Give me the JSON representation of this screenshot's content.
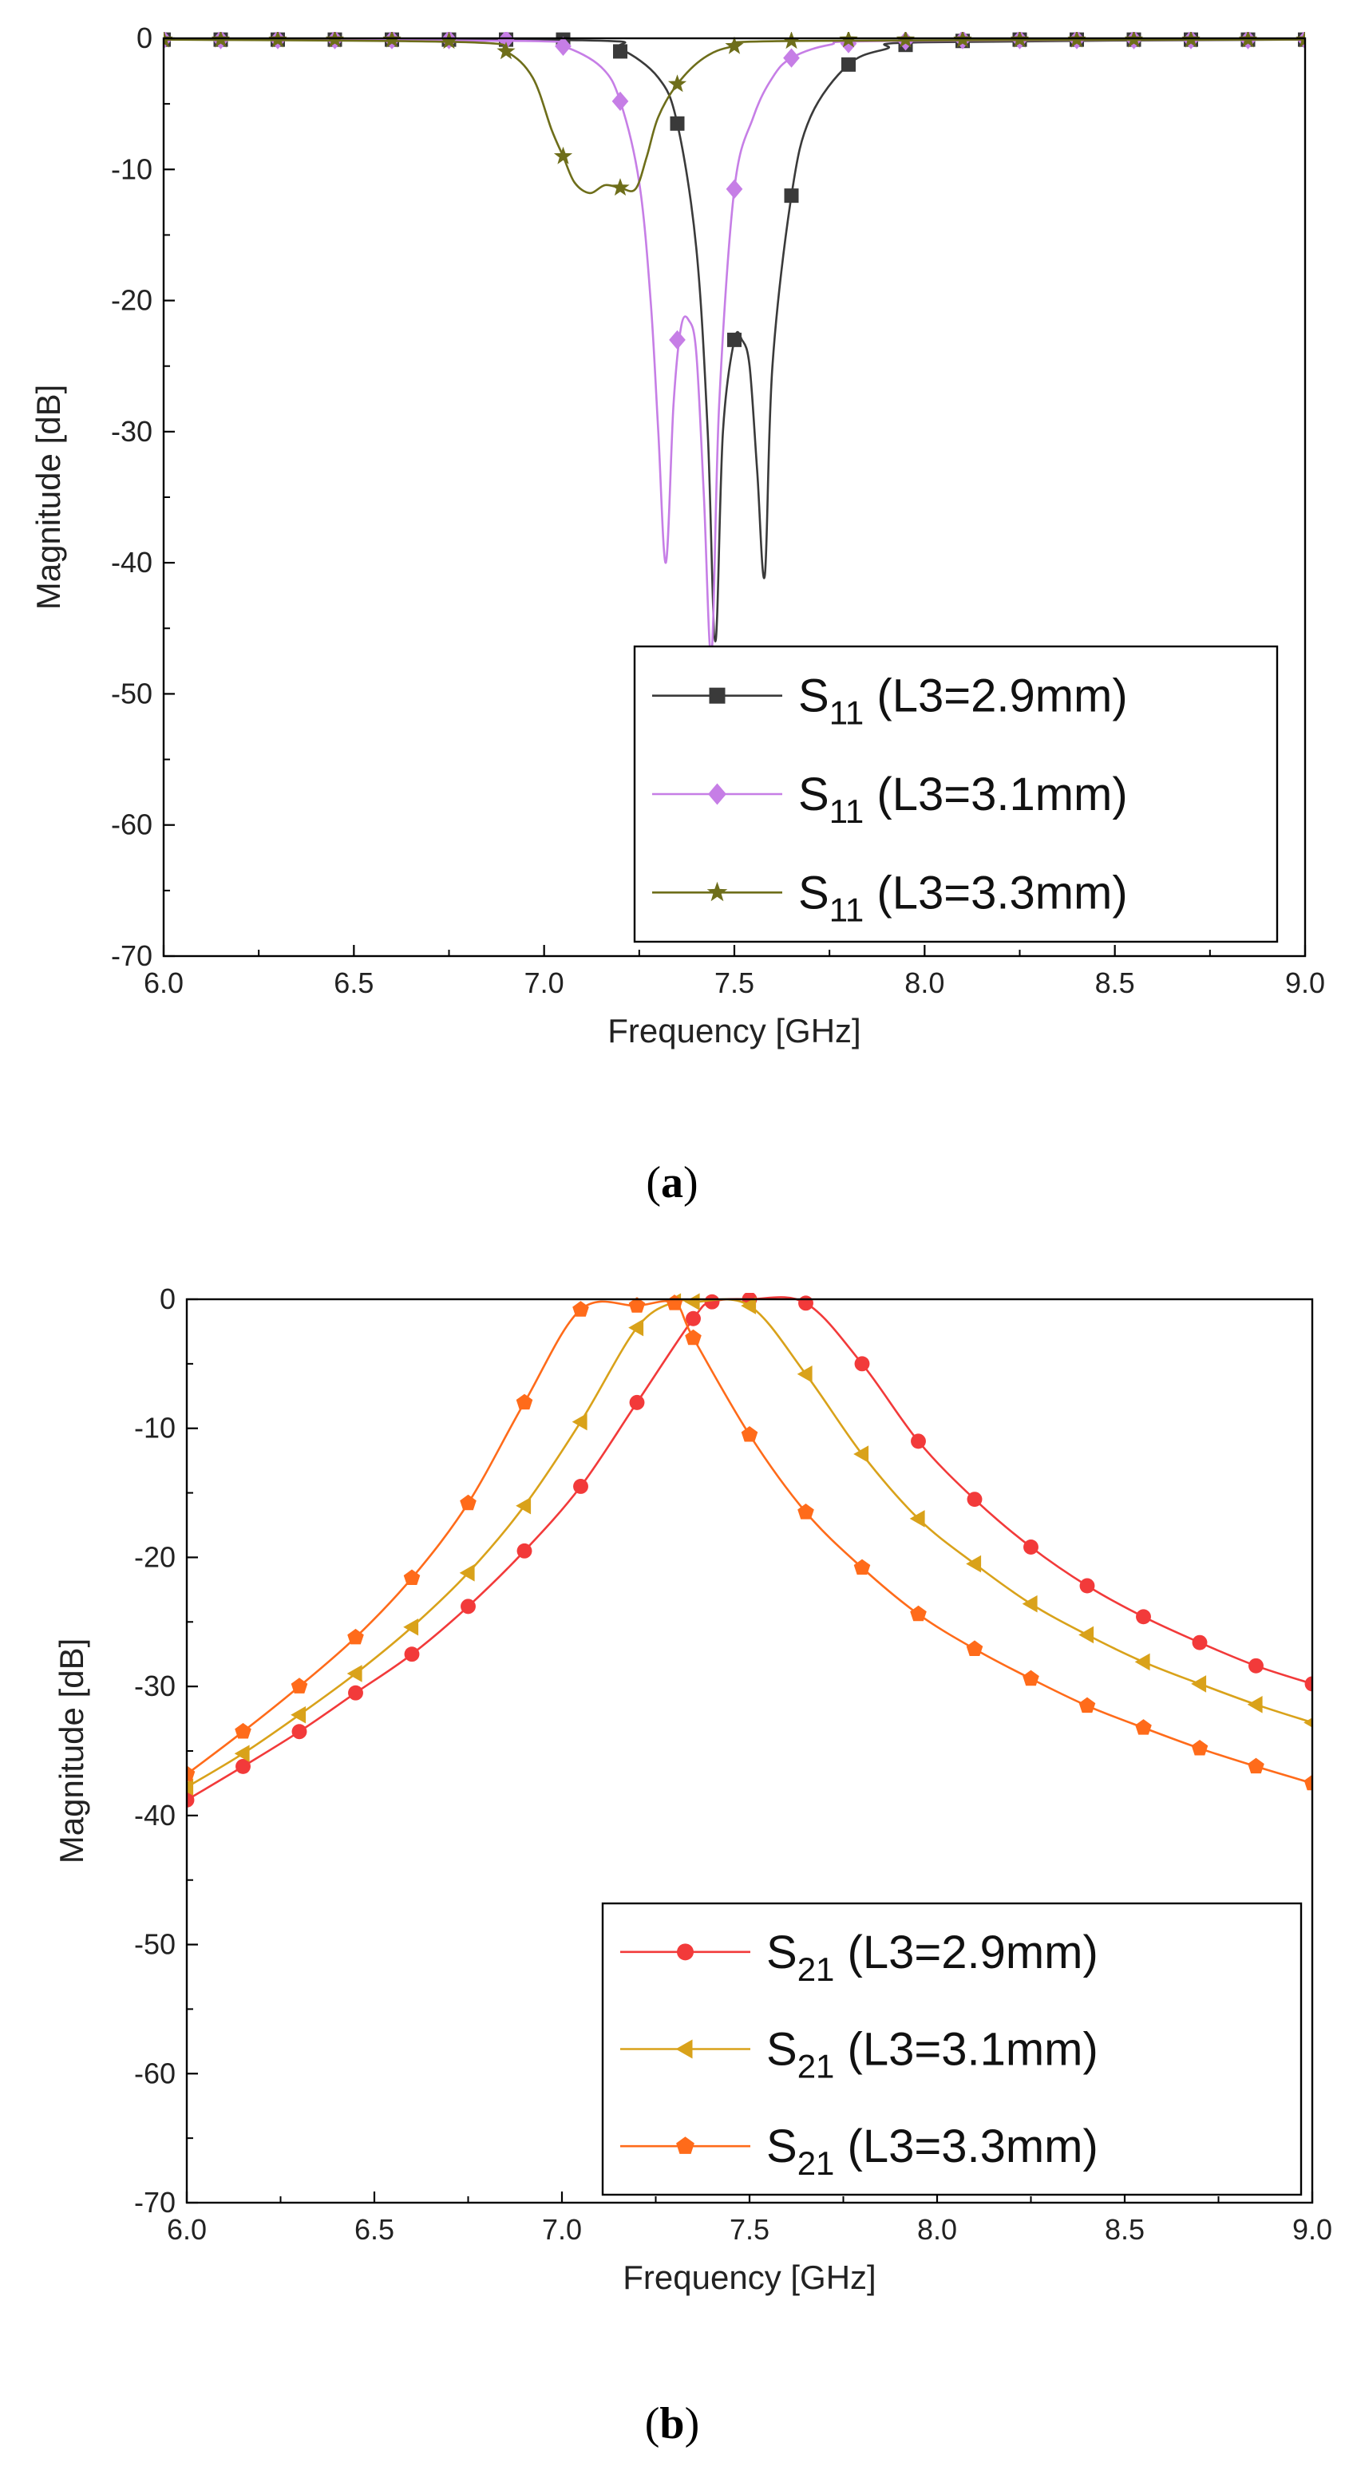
{
  "colors": {
    "axis": "#000000",
    "s11_29": "#3a3a3a",
    "s11_31": "#c67ee6",
    "s11_33": "#6e6e1a",
    "s21_29": "#f23a3a",
    "s21_31": "#d9a21a",
    "s21_33": "#ff6b1a"
  },
  "chart_data": [
    {
      "id": "a",
      "type": "line",
      "caption": "a",
      "xlabel": "Frequency [GHz]",
      "ylabel": "Magnitude [dB]",
      "xlim": [
        6.0,
        9.0
      ],
      "ylim": [
        -70,
        0
      ],
      "xticks": [
        "6.0",
        "6.5",
        "7.0",
        "7.5",
        "8.0",
        "8.5",
        "9.0"
      ],
      "yticks": [
        "0",
        "-10",
        "-20",
        "-30",
        "-40",
        "-50",
        "-60",
        "-70"
      ],
      "legend_position": "bottom-right",
      "series": [
        {
          "name": "S11 (L3=2.9mm)",
          "label_main": "S",
          "label_sub": "11",
          "label_rest": " (L3=2.9mm)",
          "color_key": "s11_29",
          "marker": "square",
          "curve": [
            [
              6.0,
              -0.1
            ],
            [
              7.1,
              -0.15
            ],
            [
              7.2,
              -0.8
            ],
            [
              7.3,
              -3
            ],
            [
              7.35,
              -6.5
            ],
            [
              7.4,
              -16
            ],
            [
              7.43,
              -30
            ],
            [
              7.45,
              -46
            ],
            [
              7.47,
              -30
            ],
            [
              7.5,
              -23
            ],
            [
              7.52,
              -23
            ],
            [
              7.54,
              -25
            ],
            [
              7.56,
              -33
            ],
            [
              7.58,
              -41
            ],
            [
              7.6,
              -25
            ],
            [
              7.65,
              -12
            ],
            [
              7.7,
              -6
            ],
            [
              7.8,
              -2
            ],
            [
              7.9,
              -0.8
            ],
            [
              8.0,
              -0.3
            ],
            [
              9.0,
              -0.1
            ]
          ],
          "markers": [
            [
              6.0,
              -0.1
            ],
            [
              6.15,
              -0.1
            ],
            [
              6.3,
              -0.1
            ],
            [
              6.45,
              -0.1
            ],
            [
              6.6,
              -0.1
            ],
            [
              6.75,
              -0.1
            ],
            [
              6.9,
              -0.1
            ],
            [
              7.05,
              -0.1
            ],
            [
              7.2,
              -1
            ],
            [
              7.35,
              -6.5
            ],
            [
              7.5,
              -23
            ],
            [
              7.65,
              -12
            ],
            [
              7.8,
              -2
            ],
            [
              7.95,
              -0.5
            ],
            [
              8.1,
              -0.2
            ],
            [
              8.25,
              -0.1
            ],
            [
              8.4,
              -0.1
            ],
            [
              8.55,
              -0.1
            ],
            [
              8.7,
              -0.1
            ],
            [
              8.85,
              -0.1
            ],
            [
              9.0,
              -0.1
            ]
          ]
        },
        {
          "name": "S11 (L3=3.1mm)",
          "label_main": "S",
          "label_sub": "11",
          "label_rest": " (L3=3.1mm)",
          "color_key": "s11_31",
          "marker": "diamond",
          "curve": [
            [
              6.0,
              -0.1
            ],
            [
              6.95,
              -0.2
            ],
            [
              7.05,
              -0.6
            ],
            [
              7.15,
              -2.2
            ],
            [
              7.2,
              -4.8
            ],
            [
              7.25,
              -11
            ],
            [
              7.28,
              -20
            ],
            [
              7.3,
              -30
            ],
            [
              7.32,
              -40
            ],
            [
              7.34,
              -28
            ],
            [
              7.36,
              -22
            ],
            [
              7.38,
              -21.5
            ],
            [
              7.4,
              -24
            ],
            [
              7.42,
              -35
            ],
            [
              7.44,
              -47
            ],
            [
              7.46,
              -28
            ],
            [
              7.5,
              -11.5
            ],
            [
              7.55,
              -6
            ],
            [
              7.6,
              -3
            ],
            [
              7.65,
              -1.5
            ],
            [
              7.75,
              -0.5
            ],
            [
              7.9,
              -0.2
            ],
            [
              9.0,
              -0.1
            ]
          ],
          "markers": [
            [
              6.0,
              -0.1
            ],
            [
              6.15,
              -0.1
            ],
            [
              6.3,
              -0.1
            ],
            [
              6.45,
              -0.1
            ],
            [
              6.6,
              -0.1
            ],
            [
              6.75,
              -0.1
            ],
            [
              6.9,
              -0.1
            ],
            [
              7.05,
              -0.6
            ],
            [
              7.2,
              -4.8
            ],
            [
              7.35,
              -23
            ],
            [
              7.5,
              -11.5
            ],
            [
              7.65,
              -1.5
            ],
            [
              7.8,
              -0.4
            ],
            [
              7.95,
              -0.2
            ],
            [
              8.1,
              -0.1
            ],
            [
              8.25,
              -0.1
            ],
            [
              8.4,
              -0.1
            ],
            [
              8.55,
              -0.1
            ],
            [
              8.7,
              -0.1
            ],
            [
              8.85,
              -0.1
            ],
            [
              9.0,
              -0.1
            ]
          ]
        },
        {
          "name": "S11 (L3=3.3mm)",
          "label_main": "S",
          "label_sub": "11",
          "label_rest": " (L3=3.3mm)",
          "color_key": "s11_33",
          "marker": "star",
          "curve": [
            [
              6.0,
              -0.1
            ],
            [
              6.8,
              -0.3
            ],
            [
              6.9,
              -1
            ],
            [
              6.97,
              -3
            ],
            [
              7.02,
              -7
            ],
            [
              7.05,
              -9
            ],
            [
              7.08,
              -11
            ],
            [
              7.12,
              -11.8
            ],
            [
              7.16,
              -11.2
            ],
            [
              7.2,
              -11.4
            ],
            [
              7.24,
              -11.5
            ],
            [
              7.27,
              -9
            ],
            [
              7.3,
              -6
            ],
            [
              7.35,
              -3.5
            ],
            [
              7.42,
              -1.5
            ],
            [
              7.5,
              -0.6
            ],
            [
              7.65,
              -0.2
            ],
            [
              9.0,
              -0.1
            ]
          ],
          "markers": [
            [
              6.0,
              -0.1
            ],
            [
              6.15,
              -0.1
            ],
            [
              6.3,
              -0.1
            ],
            [
              6.45,
              -0.1
            ],
            [
              6.6,
              -0.1
            ],
            [
              6.75,
              -0.2
            ],
            [
              6.9,
              -1
            ],
            [
              7.05,
              -9
            ],
            [
              7.2,
              -11.4
            ],
            [
              7.35,
              -3.5
            ],
            [
              7.5,
              -0.6
            ],
            [
              7.65,
              -0.2
            ],
            [
              7.8,
              -0.1
            ],
            [
              7.95,
              -0.1
            ],
            [
              8.1,
              -0.1
            ],
            [
              8.25,
              -0.1
            ],
            [
              8.4,
              -0.1
            ],
            [
              8.55,
              -0.1
            ],
            [
              8.7,
              -0.1
            ],
            [
              8.85,
              -0.1
            ],
            [
              9.0,
              -0.1
            ]
          ]
        }
      ]
    },
    {
      "id": "b",
      "type": "line",
      "caption": "b",
      "xlabel": "Frequency [GHz]",
      "ylabel": "Magnitude [dB]",
      "xlim": [
        6.0,
        9.0
      ],
      "ylim": [
        -70,
        0
      ],
      "xticks": [
        "6.0",
        "6.5",
        "7.0",
        "7.5",
        "8.0",
        "8.5",
        "9.0"
      ],
      "yticks": [
        "0",
        "-10",
        "-20",
        "-30",
        "-40",
        "-50",
        "-60",
        "-70"
      ],
      "legend_position": "bottom-right",
      "series": [
        {
          "name": "S21 (L3=2.9mm)",
          "label_main": "S",
          "label_sub": "21",
          "label_rest": " (L3=2.9mm)",
          "color_key": "s21_29",
          "marker": "circle",
          "markers": [
            [
              6.0,
              -38.8
            ],
            [
              6.15,
              -36.2
            ],
            [
              6.3,
              -33.5
            ],
            [
              6.45,
              -30.5
            ],
            [
              6.6,
              -27.5
            ],
            [
              6.75,
              -23.8
            ],
            [
              6.9,
              -19.5
            ],
            [
              7.05,
              -14.5
            ],
            [
              7.2,
              -8
            ],
            [
              7.35,
              -1.5
            ],
            [
              7.4,
              -0.2
            ],
            [
              7.5,
              0
            ],
            [
              7.65,
              -0.3
            ],
            [
              7.8,
              -5
            ],
            [
              7.95,
              -11
            ],
            [
              8.1,
              -15.5
            ],
            [
              8.25,
              -19.2
            ],
            [
              8.4,
              -22.2
            ],
            [
              8.55,
              -24.6
            ],
            [
              8.7,
              -26.6
            ],
            [
              8.85,
              -28.4
            ],
            [
              9.0,
              -29.8
            ]
          ]
        },
        {
          "name": "S21 (L3=3.1mm)",
          "label_main": "S",
          "label_sub": "21",
          "label_rest": " (L3=3.1mm)",
          "color_key": "s21_31",
          "marker": "triangle-left",
          "markers": [
            [
              6.0,
              -37.8
            ],
            [
              6.15,
              -35.2
            ],
            [
              6.3,
              -32.2
            ],
            [
              6.45,
              -29
            ],
            [
              6.6,
              -25.4
            ],
            [
              6.75,
              -21.2
            ],
            [
              6.9,
              -16
            ],
            [
              7.05,
              -9.5
            ],
            [
              7.2,
              -2.2
            ],
            [
              7.3,
              -0.2
            ],
            [
              7.35,
              -0.2
            ],
            [
              7.5,
              -0.5
            ],
            [
              7.65,
              -5.8
            ],
            [
              7.8,
              -12
            ],
            [
              7.95,
              -17
            ],
            [
              8.1,
              -20.5
            ],
            [
              8.25,
              -23.6
            ],
            [
              8.4,
              -26
            ],
            [
              8.55,
              -28.1
            ],
            [
              8.7,
              -29.8
            ],
            [
              8.85,
              -31.4
            ],
            [
              9.0,
              -32.8
            ]
          ]
        },
        {
          "name": "S21 (L3=3.3mm)",
          "label_main": "S",
          "label_sub": "21",
          "label_rest": " (L3=3.3mm)",
          "color_key": "s21_33",
          "marker": "pentagon",
          "markers": [
            [
              6.0,
              -36.8
            ],
            [
              6.15,
              -33.5
            ],
            [
              6.3,
              -30
            ],
            [
              6.45,
              -26.2
            ],
            [
              6.6,
              -21.6
            ],
            [
              6.75,
              -15.8
            ],
            [
              6.9,
              -8
            ],
            [
              7.05,
              -0.8
            ],
            [
              7.2,
              -0.5
            ],
            [
              7.3,
              -0.3
            ],
            [
              7.35,
              -3
            ],
            [
              7.5,
              -10.5
            ],
            [
              7.65,
              -16.5
            ],
            [
              7.8,
              -20.8
            ],
            [
              7.95,
              -24.4
            ],
            [
              8.1,
              -27.1
            ],
            [
              8.25,
              -29.4
            ],
            [
              8.4,
              -31.5
            ],
            [
              8.55,
              -33.2
            ],
            [
              8.7,
              -34.8
            ],
            [
              8.85,
              -36.2
            ],
            [
              9.0,
              -37.5
            ]
          ]
        }
      ]
    }
  ]
}
